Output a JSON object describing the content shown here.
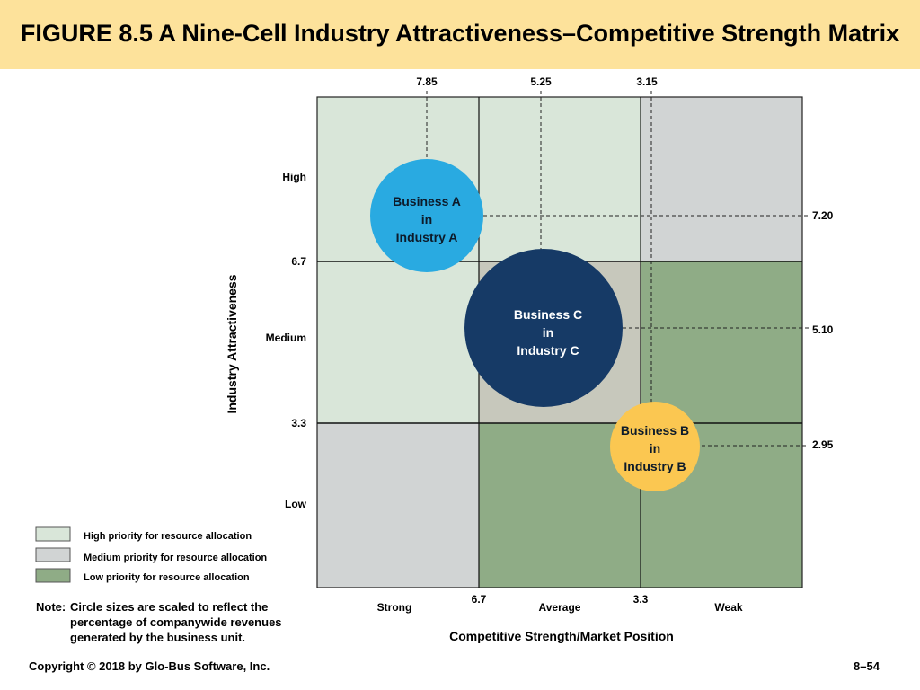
{
  "header": {
    "title": "FIGURE 8.5 A Nine-Cell Industry Attractiveness–Competitive Strength Matrix"
  },
  "matrix": {
    "y_axis_title": "Industry Attractiveness",
    "x_axis_title": "Competitive Strength/Market Position",
    "row_labels": {
      "high": "High",
      "medium": "Medium",
      "low": "Low"
    },
    "row_boundaries": {
      "upper": "6.7",
      "lower": "3.3"
    },
    "col_labels": {
      "strong": "Strong",
      "average": "Average",
      "weak": "Weak"
    },
    "col_boundaries": {
      "left": "6.7",
      "right": "3.3"
    },
    "top_values": [
      "7.85",
      "5.25",
      "3.15"
    ],
    "right_values": [
      "7.20",
      "5.10",
      "2.95"
    ],
    "colors": {
      "high_priority": "#d9e6d9",
      "medium_priority": "#d1d4d4",
      "low_priority": "#8fac86",
      "center_cell": "#c7c8bc",
      "business_a": "#29aae1",
      "business_b": "#fbc751",
      "business_c": "#163a66"
    },
    "bubbles": {
      "a": {
        "line1": "Business A",
        "line2": "in",
        "line3": "Industry A"
      },
      "b": {
        "line1": "Business B",
        "line2": "in",
        "line3": "Industry B"
      },
      "c": {
        "line1": "Business C",
        "line2": "in",
        "line3": "Industry C"
      }
    }
  },
  "legend": {
    "high": "High priority for resource allocation",
    "medium": "Medium priority for resource allocation",
    "low": "Low priority for resource allocation"
  },
  "note": {
    "lead": "Note:",
    "text": "Circle sizes are scaled to reflect the percentage of companywide revenues generated by the business unit."
  },
  "footer": {
    "copyright": "Copyright © 2018 by Glo-Bus Software, Inc.",
    "page": "8–54"
  }
}
